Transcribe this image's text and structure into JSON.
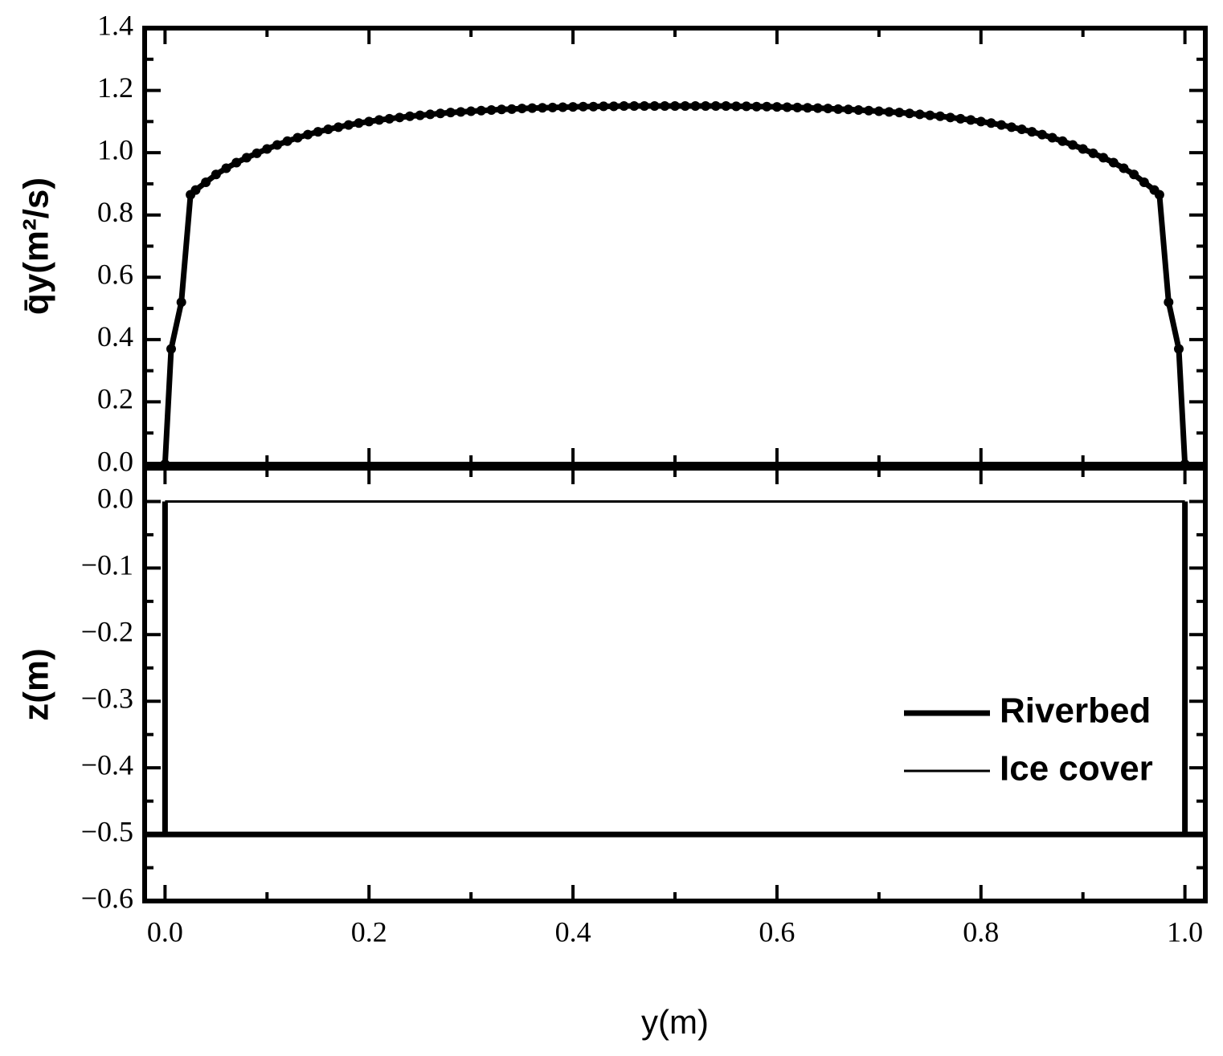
{
  "chart_data": [
    {
      "type": "line",
      "ylabel": "q̄y(m²/s)",
      "xlim": [
        -0.02,
        1.02
      ],
      "ylim": [
        0,
        1.4
      ],
      "xticks": [
        {
          "value": 0,
          "label": "0.0"
        },
        {
          "value": 0.2,
          "label": "0.2"
        },
        {
          "value": 0.4,
          "label": "0.4"
        },
        {
          "value": 0.6,
          "label": "0.6"
        },
        {
          "value": 0.8,
          "label": "0.8"
        },
        {
          "value": 1,
          "label": "1.0"
        }
      ],
      "xticks_minor": [
        0.1,
        0.3,
        0.5,
        0.7,
        0.9
      ],
      "yticks": [
        {
          "value": 0,
          "label": "0.0"
        },
        {
          "value": 0.2,
          "label": "0.2"
        },
        {
          "value": 0.4,
          "label": "0.4"
        },
        {
          "value": 0.6,
          "label": "0.6"
        },
        {
          "value": 0.8,
          "label": "0.8"
        },
        {
          "value": 1,
          "label": "1.0"
        },
        {
          "value": 1.2,
          "label": "1.2"
        },
        {
          "value": 1.4,
          "label": "1.4"
        }
      ],
      "yticks_minor": [
        0.1,
        0.3,
        0.5,
        0.7,
        0.9,
        1.1,
        1.3
      ],
      "series": [
        {
          "color": "#000000",
          "markers": true,
          "x": [
            0,
            0.006,
            0.016,
            0.025,
            0.03,
            0.04,
            0.05,
            0.06,
            0.07,
            0.08,
            0.09,
            0.1,
            0.11,
            0.12,
            0.13,
            0.14,
            0.15,
            0.16,
            0.17,
            0.18,
            0.19,
            0.2,
            0.21,
            0.22,
            0.23,
            0.24,
            0.25,
            0.26,
            0.27,
            0.28,
            0.29,
            0.3,
            0.31,
            0.32,
            0.33,
            0.34,
            0.35,
            0.36,
            0.37,
            0.38,
            0.39,
            0.4,
            0.41,
            0.42,
            0.43,
            0.44,
            0.45,
            0.46,
            0.47,
            0.48,
            0.49,
            0.5,
            0.51,
            0.52,
            0.53,
            0.54,
            0.55,
            0.56,
            0.57,
            0.58,
            0.59,
            0.6,
            0.61,
            0.62,
            0.63,
            0.64,
            0.65,
            0.66,
            0.67,
            0.68,
            0.69,
            0.7,
            0.71,
            0.72,
            0.73,
            0.74,
            0.75,
            0.76,
            0.77,
            0.78,
            0.79,
            0.8,
            0.81,
            0.82,
            0.83,
            0.84,
            0.85,
            0.86,
            0.87,
            0.88,
            0.89,
            0.9,
            0.91,
            0.92,
            0.93,
            0.94,
            0.95,
            0.96,
            0.97,
            0.975,
            0.984,
            0.994,
            1
          ],
          "values": [
            0,
            0.37,
            0.52,
            0.865,
            0.88,
            0.905,
            0.93,
            0.95,
            0.968,
            0.984,
            0.998,
            1.012,
            1.025,
            1.037,
            1.048,
            1.058,
            1.067,
            1.075,
            1.082,
            1.089,
            1.095,
            1.1,
            1.105,
            1.109,
            1.113,
            1.117,
            1.12,
            1.123,
            1.126,
            1.129,
            1.131,
            1.133,
            1.135,
            1.137,
            1.139,
            1.14,
            1.142,
            1.143,
            1.144,
            1.145,
            1.146,
            1.147,
            1.148,
            1.148,
            1.149,
            1.149,
            1.15,
            1.15,
            1.15,
            1.15,
            1.15,
            1.15,
            1.15,
            1.15,
            1.15,
            1.15,
            1.15,
            1.149,
            1.149,
            1.148,
            1.148,
            1.147,
            1.146,
            1.145,
            1.144,
            1.143,
            1.142,
            1.14,
            1.139,
            1.137,
            1.135,
            1.133,
            1.131,
            1.129,
            1.126,
            1.123,
            1.12,
            1.117,
            1.113,
            1.109,
            1.105,
            1.1,
            1.095,
            1.089,
            1.082,
            1.075,
            1.067,
            1.058,
            1.048,
            1.037,
            1.025,
            1.012,
            0.998,
            0.984,
            0.968,
            0.95,
            0.93,
            0.905,
            0.88,
            0.865,
            0.52,
            0.37,
            0
          ]
        }
      ]
    },
    {
      "type": "line",
      "xlabel": "y(m)",
      "ylabel": "z(m)",
      "xlim": [
        -0.02,
        1.02
      ],
      "ylim": [
        -0.6,
        0.05
      ],
      "xticks": [
        {
          "value": 0,
          "label": "0.0"
        },
        {
          "value": 0.2,
          "label": "0.2"
        },
        {
          "value": 0.4,
          "label": "0.4"
        },
        {
          "value": 0.6,
          "label": "0.6"
        },
        {
          "value": 0.8,
          "label": "0.8"
        },
        {
          "value": 1,
          "label": "1.0"
        }
      ],
      "xticks_minor": [
        0.1,
        0.3,
        0.5,
        0.7,
        0.9
      ],
      "yticks": [
        {
          "value": 0,
          "label": "0.0"
        },
        {
          "value": -0.1,
          "label": "−0.1"
        },
        {
          "value": -0.2,
          "label": "−0.2"
        },
        {
          "value": -0.3,
          "label": "−0.3"
        },
        {
          "value": -0.4,
          "label": "−0.4"
        },
        {
          "value": -0.5,
          "label": "−0.5"
        },
        {
          "value": -0.6,
          "label": "−0.6"
        }
      ],
      "yticks_minor": [
        -0.05,
        -0.15,
        -0.25,
        -0.35,
        -0.45,
        -0.55
      ],
      "legend": "lower right",
      "series": [
        {
          "name": "Riverbed",
          "color": "#000000",
          "width": "thick",
          "x": [
            0,
            0,
            0,
            -0.02,
            1.02,
            1.02,
            1,
            1
          ],
          "values": [
            0,
            -0.5,
            null,
            -0.5,
            -0.5,
            null,
            -0.5,
            0
          ]
        },
        {
          "name": "Ice cover",
          "color": "#000000",
          "width": "thin",
          "x": [
            0,
            1
          ],
          "values": [
            0,
            0
          ]
        }
      ]
    }
  ]
}
